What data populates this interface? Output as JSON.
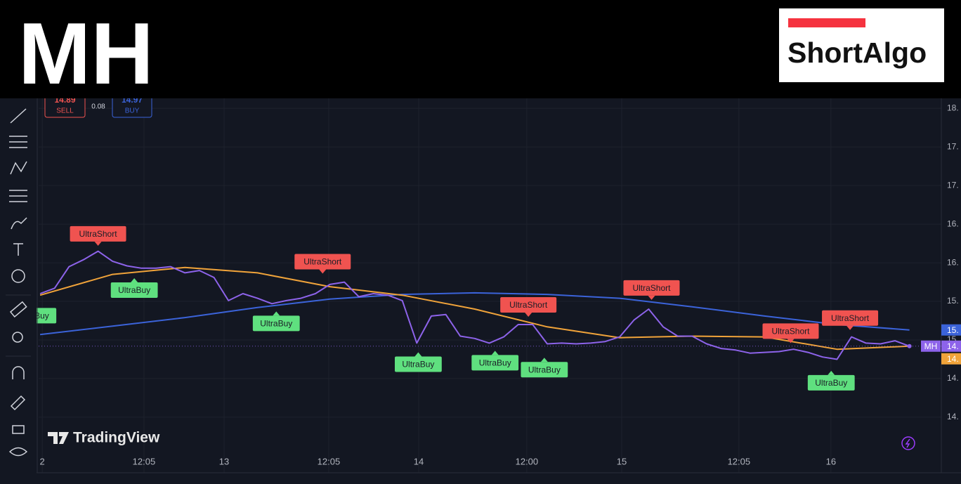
{
  "header": {
    "symbol": "MH",
    "logo": "ShortAlgo"
  },
  "order_panel": {
    "sell_price": "14.89",
    "sell_label": "SELL",
    "spread": "0.08",
    "buy_price": "14.97",
    "buy_label": "BUY"
  },
  "watermark": "TradingView",
  "chart_data": {
    "type": "line",
    "xlim": [
      -0.1,
      62.2
    ],
    "ylim": [
      13.28,
      18.13
    ],
    "grid": true,
    "yticks": [
      {
        "value": 18,
        "label": "18."
      },
      {
        "value": 17.5,
        "label": "17."
      },
      {
        "value": 17,
        "label": "17."
      },
      {
        "value": 16.5,
        "label": "16."
      },
      {
        "value": 16,
        "label": "16."
      },
      {
        "value": 15.5,
        "label": "15."
      },
      {
        "value": 15,
        "label": "15."
      },
      {
        "value": 14.5,
        "label": "14."
      },
      {
        "value": 14,
        "label": "14."
      }
    ],
    "xticks": [
      {
        "value": 0.15,
        "label": "2"
      },
      {
        "value": 7.17,
        "label": "12:05"
      },
      {
        "value": 12.7,
        "label": "13"
      },
      {
        "value": 19.92,
        "label": "12:05"
      },
      {
        "value": 26.13,
        "label": "14"
      },
      {
        "value": 33.59,
        "label": "12:00"
      },
      {
        "value": 40.14,
        "label": "15"
      },
      {
        "value": 48.23,
        "label": "12:05"
      },
      {
        "value": 54.58,
        "label": "16"
      }
    ],
    "series": [
      {
        "color": "#3b63d9",
        "x": [
          0,
          5,
          10,
          15,
          20,
          25,
          30,
          35,
          40,
          45,
          50,
          55,
          60
        ],
        "values": [
          15.07,
          15.18,
          15.29,
          15.42,
          15.53,
          15.59,
          15.61,
          15.59,
          15.54,
          15.43,
          15.31,
          15.2,
          15.13
        ]
      },
      {
        "color": "#f0a33a",
        "x": [
          0,
          5,
          10,
          15,
          20,
          25,
          30,
          35,
          40,
          45,
          50,
          55,
          60
        ],
        "values": [
          15.58,
          15.85,
          15.94,
          15.87,
          15.69,
          15.58,
          15.4,
          15.17,
          15.03,
          15.05,
          15.04,
          14.88,
          14.92
        ]
      },
      {
        "name": "MH",
        "color": "#8d63ea",
        "x": [
          0,
          1,
          2,
          3,
          4,
          5,
          6,
          7,
          8,
          9,
          10,
          11,
          12,
          13,
          14,
          15,
          16,
          17,
          18,
          19,
          20,
          21,
          22,
          23,
          24,
          25,
          26,
          27,
          28,
          29,
          30,
          31,
          32,
          33,
          34,
          35,
          36,
          37,
          38,
          39,
          40,
          41,
          42,
          43,
          44,
          45,
          46,
          47,
          48,
          49,
          50,
          51,
          52,
          53,
          54,
          55,
          56,
          57,
          58,
          59,
          60
        ],
        "values": [
          15.6,
          15.67,
          15.95,
          16.04,
          16.15,
          16.02,
          15.96,
          15.93,
          15.93,
          15.95,
          15.87,
          15.9,
          15.81,
          15.51,
          15.6,
          15.54,
          15.47,
          15.51,
          15.54,
          15.6,
          15.72,
          15.75,
          15.56,
          15.6,
          15.58,
          15.51,
          14.96,
          15.31,
          15.33,
          15.05,
          15.02,
          14.96,
          15.04,
          15.2,
          15.2,
          14.95,
          14.96,
          14.95,
          14.96,
          14.98,
          15.04,
          15.26,
          15.4,
          15.17,
          15.05,
          15.05,
          14.95,
          14.89,
          14.87,
          14.83,
          14.84,
          14.85,
          14.88,
          14.84,
          14.78,
          14.75,
          15.04,
          14.96,
          14.95,
          14.99,
          14.92
        ]
      }
    ],
    "price_labels": [
      {
        "value": 15.13,
        "label": "15.",
        "color": "#3b63d9"
      },
      {
        "value": 14.92,
        "label": "14.",
        "name": "MH",
        "color": "#8d63ea"
      },
      {
        "value": 14.88,
        "label": "14.",
        "color": "#f0a33a"
      }
    ],
    "signals": [
      {
        "label": "UltraBuy",
        "kind": "buy",
        "x": -0.5,
        "value": 15.47
      },
      {
        "label": "UltraShort",
        "kind": "short",
        "x": 4,
        "value": 16.22
      },
      {
        "label": "UltraBuy",
        "kind": "buy",
        "x": 6.5,
        "value": 15.8
      },
      {
        "label": "UltraBuy",
        "kind": "buy",
        "x": 16.3,
        "value": 15.37
      },
      {
        "label": "UltraShort",
        "kind": "short",
        "x": 19.5,
        "value": 15.86
      },
      {
        "label": "UltraBuy",
        "kind": "buy",
        "x": 26.1,
        "value": 14.84
      },
      {
        "label": "UltraBuy",
        "kind": "buy",
        "x": 31.4,
        "value": 14.86
      },
      {
        "label": "UltraShort",
        "kind": "short",
        "x": 33.7,
        "value": 15.3
      },
      {
        "label": "UltraBuy",
        "kind": "buy",
        "x": 34.8,
        "value": 14.77
      },
      {
        "label": "UltraShort",
        "kind": "short",
        "x": 42.2,
        "value": 15.52
      },
      {
        "label": "UltraShort",
        "kind": "short",
        "x": 51.8,
        "value": 14.96
      },
      {
        "label": "UltraBuy",
        "kind": "buy",
        "x": 54.6,
        "value": 14.6
      },
      {
        "label": "UltraShort",
        "kind": "short",
        "x": 55.9,
        "value": 15.13
      }
    ]
  }
}
